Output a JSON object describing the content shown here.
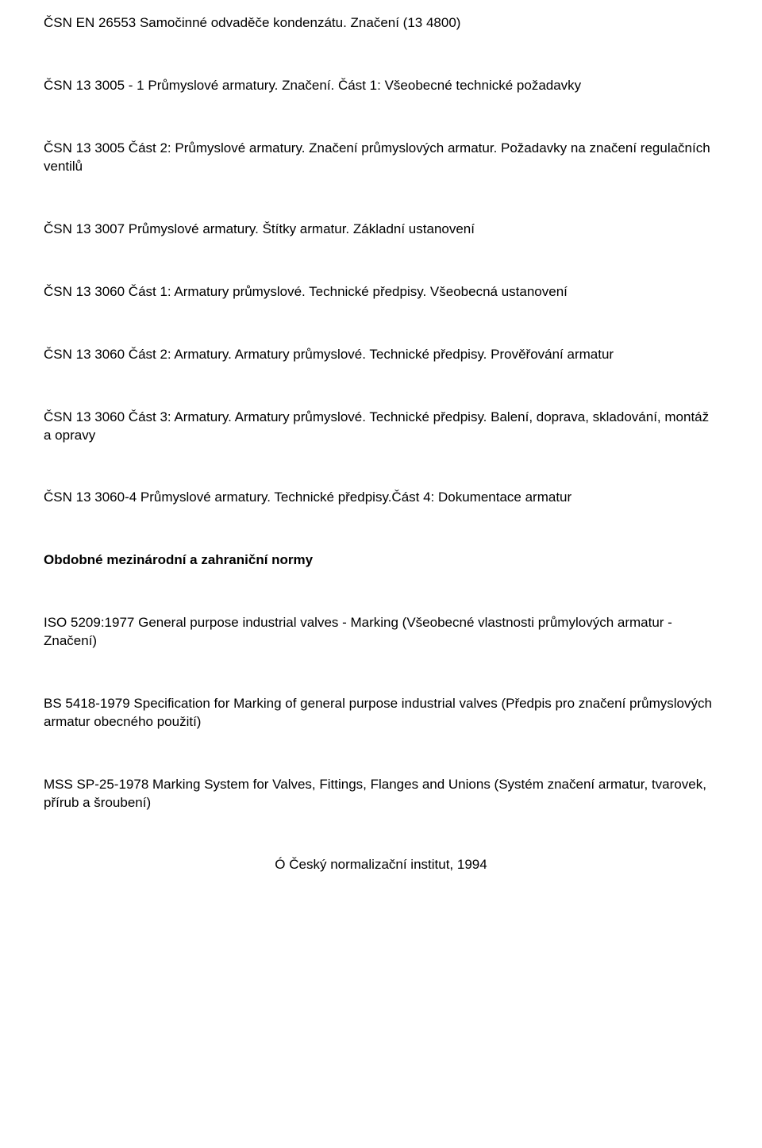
{
  "paragraphs": [
    {
      "text": "ČSN EN 26553  Samočinné odvaděče kondenzátu. Značení (13 4800)",
      "bold": false
    },
    {
      "text": "ČSN 13 3005 - 1  Průmyslové armatury. Značení. Část 1: Všeobecné technické požadavky",
      "bold": false
    },
    {
      "text": "ČSN 13 3005 Část 2:  Průmyslové armatury. Značení průmyslových armatur. Požadavky na značení regulačních ventilů",
      "bold": false
    },
    {
      "text": "ČSN 13 3007 Průmyslové armatury. Štítky armatur. Základní ustanovení",
      "bold": false
    },
    {
      "text": "ČSN 13 3060 Část 1:  Armatury průmyslové. Technické předpisy. Všeobecná ustanovení",
      "bold": false
    },
    {
      "text": "ČSN 13 3060 Část 2:  Armatury. Armatury průmyslové. Technické předpisy. Prověřování armatur",
      "bold": false
    },
    {
      "text": "ČSN 13 3060 Část 3:  Armatury. Armatury průmyslové. Technické předpisy. Balení, doprava, skladování, montáž a opravy",
      "bold": false
    },
    {
      "text": "ČSN 13 3060-4  Průmyslové armatury. Technické předpisy.Část 4:  Dokumentace armatur",
      "bold": false
    },
    {
      "text": "Obdobné mezinárodní a zahraniční normy",
      "bold": true
    },
    {
      "text": "ISO 5209:1977 General purpose industrial valves - Marking (Všeobecné vlastnosti průmylových armatur        - Značení)",
      "bold": false
    },
    {
      "text": "BS 5418-1979 Specification for Marking of general purpose industrial valves (Předpis pro značení průmyslových armatur obecného použití)",
      "bold": false
    },
    {
      "text": "MSS SP-25-1978 Marking System for Valves, Fittings, Flanges and Unions (Systém značení armatur, tvarovek, přírub a šroubení)",
      "bold": false
    }
  ],
  "footer": "Ó Český normalizační institut, 1994"
}
